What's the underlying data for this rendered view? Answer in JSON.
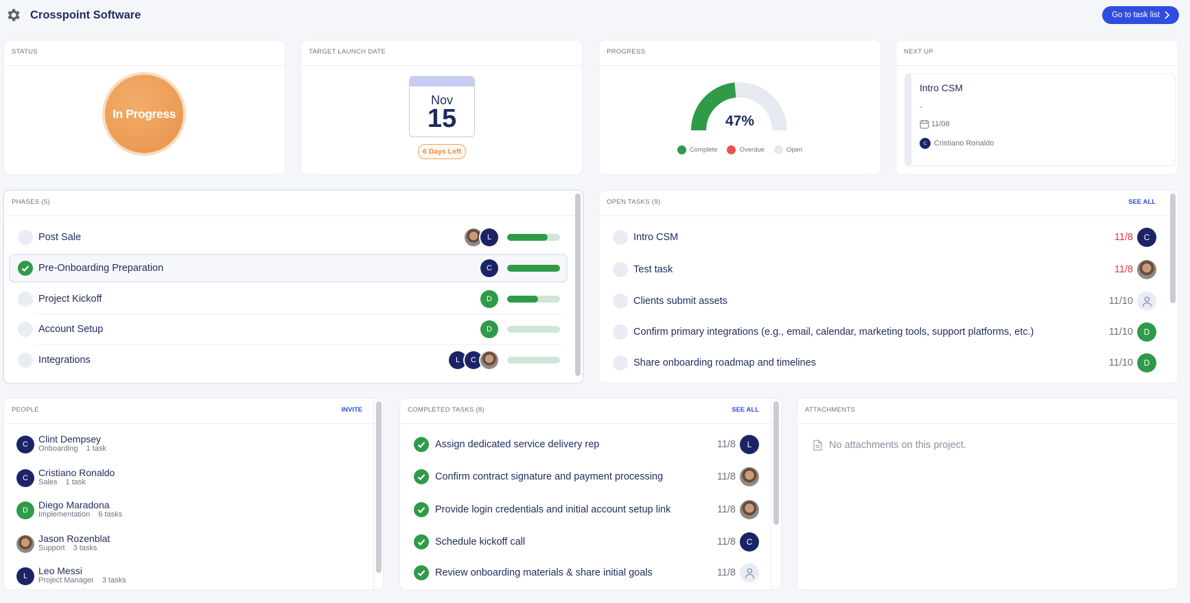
{
  "header": {
    "title": "Crosspoint Software",
    "button": "Go to task list"
  },
  "status": {
    "heading": "STATUS",
    "value": "In Progress"
  },
  "launch": {
    "heading": "TARGET LAUNCH DATE",
    "month": "Nov",
    "day": 15,
    "badge": "6 Days Left"
  },
  "progress": {
    "heading": "PROGRESS",
    "value": 47,
    "label": "47%",
    "legend": [
      {
        "name": "Complete",
        "color": "#2f9a48"
      },
      {
        "name": "Overdue",
        "color": "#e5534b"
      },
      {
        "name": "Open",
        "color": "#e6e9f0"
      }
    ]
  },
  "next_up": {
    "heading": "NEXT UP",
    "title": "Intro CSM",
    "description": "-",
    "date": "11/08",
    "assignee": {
      "initial": "C",
      "color": "#1b2466",
      "name": "Cristiano Ronaldo"
    }
  },
  "phases": {
    "heading": "PHASES (5)",
    "items": [
      {
        "name": "Post Sale",
        "done": false,
        "progress": 77,
        "avatars": [
          {
            "kind": "photo"
          },
          {
            "initial": "L",
            "color": "#1b2466"
          }
        ]
      },
      {
        "name": "Pre-Onboarding Preparation",
        "done": true,
        "progress": 100,
        "avatars": [
          {
            "initial": "C",
            "color": "#1b2466"
          }
        ]
      },
      {
        "name": "Project Kickoff",
        "done": false,
        "progress": 59,
        "avatars": [
          {
            "initial": "D",
            "color": "#2f9a48"
          }
        ]
      },
      {
        "name": "Account Setup",
        "done": false,
        "progress": 0,
        "avatars": [
          {
            "initial": "D",
            "color": "#2f9a48"
          }
        ]
      },
      {
        "name": "Integrations",
        "done": false,
        "progress": 0,
        "avatars": [
          {
            "initial": "L",
            "color": "#1b2466"
          },
          {
            "initial": "C",
            "color": "#1b2466"
          },
          {
            "kind": "photo"
          }
        ]
      }
    ]
  },
  "open_tasks": {
    "heading": "OPEN TASKS (9)",
    "link": "SEE ALL",
    "items": [
      {
        "name": "Intro CSM",
        "date": "11/8",
        "overdue": true,
        "avatar": {
          "initial": "C",
          "color": "#1b2466"
        }
      },
      {
        "name": "Test task",
        "date": "11/8",
        "overdue": true,
        "avatar": {
          "kind": "photo"
        }
      },
      {
        "name": "Clients submit assets",
        "date": "11/10",
        "overdue": false,
        "avatar": {
          "kind": "placeholder"
        }
      },
      {
        "name": "Confirm primary integrations (e.g., email, calendar, marketing tools, support platforms, etc.)",
        "date": "11/10",
        "overdue": false,
        "avatar": {
          "initial": "D",
          "color": "#2f9a48"
        }
      },
      {
        "name": "Share onboarding roadmap and timelines",
        "date": "11/10",
        "overdue": false,
        "avatar": {
          "initial": "D",
          "color": "#2f9a48"
        }
      }
    ]
  },
  "people": {
    "heading": "PEOPLE",
    "link": "INVITE",
    "items": [
      {
        "name": "Clint Dempsey",
        "role": "Onboarding",
        "tasks": "1 task",
        "avatar": {
          "initial": "C",
          "color": "#1b2466"
        }
      },
      {
        "name": "Cristiano Ronaldo",
        "role": "Sales",
        "tasks": "1 task",
        "avatar": {
          "initial": "C",
          "color": "#1b2466"
        }
      },
      {
        "name": "Diego Maradona",
        "role": "Implementation",
        "tasks": "6 tasks",
        "avatar": {
          "initial": "D",
          "color": "#2f9a48"
        }
      },
      {
        "name": "Jason Rozenblat",
        "role": "Support",
        "tasks": "3 tasks",
        "avatar": {
          "kind": "photo"
        }
      },
      {
        "name": "Leo Messi",
        "role": "Project Manager",
        "tasks": "3 tasks",
        "avatar": {
          "initial": "L",
          "color": "#1b2466"
        }
      }
    ]
  },
  "completed_tasks": {
    "heading": "COMPLETED TASKS (8)",
    "link": "SEE ALL",
    "items": [
      {
        "name": "Assign dedicated service delivery rep",
        "date": "11/8",
        "avatar": {
          "initial": "L",
          "color": "#1b2466"
        }
      },
      {
        "name": "Confirm contract signature and payment processing",
        "date": "11/8",
        "avatar": {
          "kind": "photo"
        }
      },
      {
        "name": "Provide login credentials and initial account setup link",
        "date": "11/8",
        "avatar": {
          "kind": "photo"
        }
      },
      {
        "name": "Schedule kickoff call",
        "date": "11/8",
        "avatar": {
          "initial": "C",
          "color": "#1b2466"
        }
      },
      {
        "name": "Review onboarding materials & share initial goals",
        "date": "11/8",
        "avatar": {
          "kind": "placeholder"
        }
      }
    ]
  },
  "attachments": {
    "heading": "ATTACHMENTS",
    "empty": "No attachments on this project."
  }
}
